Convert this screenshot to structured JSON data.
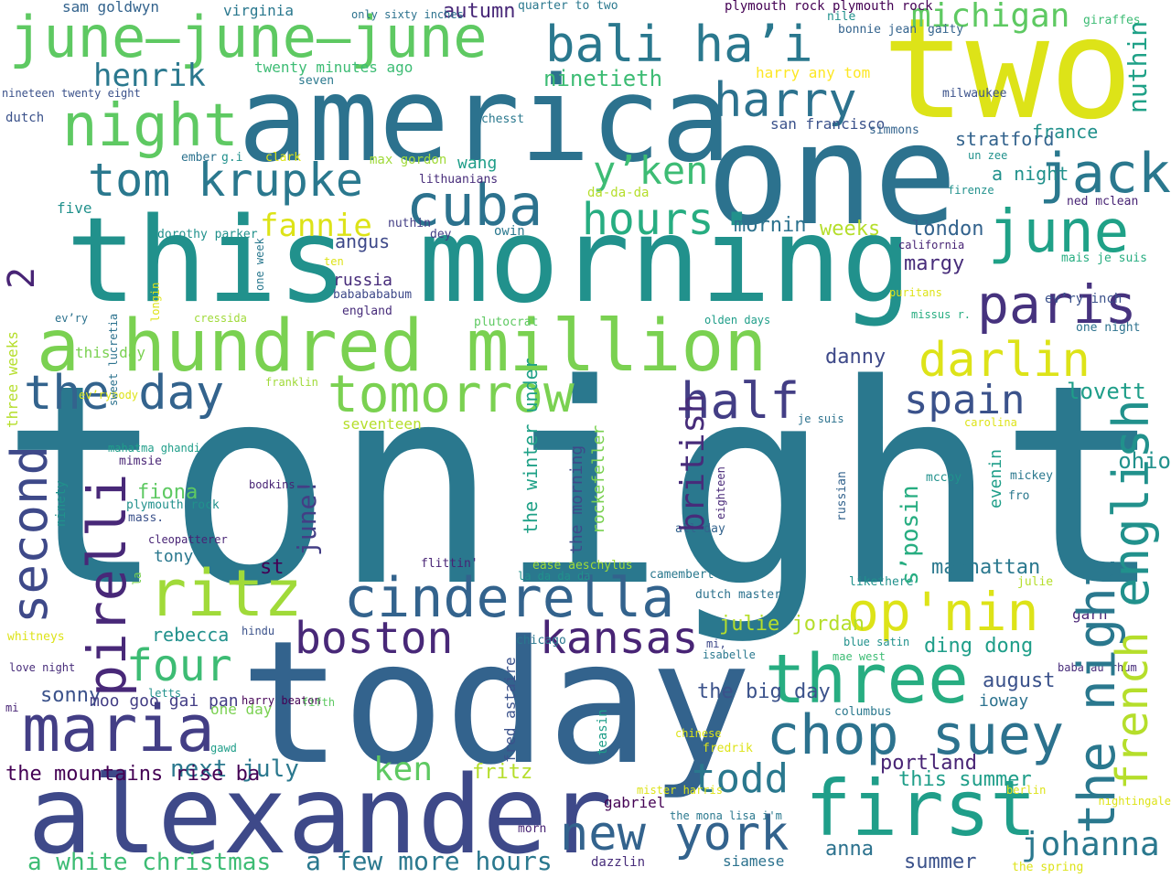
{
  "words": [
    {
      "text": "tonight",
      "color": "#2a788e"
    },
    {
      "text": "today",
      "color": "#33638d"
    },
    {
      "text": "one",
      "color": "#2c728e"
    },
    {
      "text": "this morning",
      "color": "#21918c"
    },
    {
      "text": "america",
      "color": "#2c728e"
    },
    {
      "text": "two",
      "color": "#dde318"
    },
    {
      "text": "alexander",
      "color": "#3e4989"
    },
    {
      "text": "a hundred million",
      "color": "#7ad151"
    },
    {
      "text": "june—june—june",
      "color": "#5ec962"
    },
    {
      "text": "bali ha’i",
      "color": "#2a788e"
    },
    {
      "text": "maria",
      "color": "#433e85"
    },
    {
      "text": "first",
      "color": "#1f9e89"
    },
    {
      "text": "three",
      "color": "#27ad81"
    },
    {
      "text": "chop suey",
      "color": "#2c728e"
    },
    {
      "text": "new york",
      "color": "#33638d"
    },
    {
      "text": "cinderella",
      "color": "#33638d"
    },
    {
      "text": "tomorrow",
      "color": "#7ad151"
    },
    {
      "text": "ritz",
      "color": "#a0da39"
    },
    {
      "text": "boston",
      "color": "#482878"
    },
    {
      "text": "kansas",
      "color": "#482475"
    },
    {
      "text": "paris",
      "color": "#46327e"
    },
    {
      "text": "june",
      "color": "#1fa187"
    },
    {
      "text": "jack",
      "color": "#2a788e"
    },
    {
      "text": "cuba",
      "color": "#2c728e"
    },
    {
      "text": "night",
      "color": "#5ec962"
    },
    {
      "text": "tom krupke",
      "color": "#2a788e"
    },
    {
      "text": "the day",
      "color": "#33638d"
    },
    {
      "text": "harry",
      "color": "#2c728e"
    },
    {
      "text": "op'nin",
      "color": "#dde318"
    },
    {
      "text": "darlin",
      "color": "#dde318"
    },
    {
      "text": "half",
      "color": "#433e85"
    },
    {
      "text": "spain",
      "color": "#3b528b"
    },
    {
      "text": "todd",
      "color": "#2a788e"
    },
    {
      "text": "y’ken",
      "color": "#3dbc74"
    },
    {
      "text": "hours",
      "color": "#27ad81"
    },
    {
      "text": "four",
      "color": "#3dbc74"
    },
    {
      "text": "michigan",
      "color": "#5ec962"
    },
    {
      "text": "johanna",
      "color": "#2a788e"
    },
    {
      "text": "ken",
      "color": "#5ec962"
    },
    {
      "text": "henrik",
      "color": "#2a788e"
    },
    {
      "text": "fannie",
      "color": "#dde318"
    },
    {
      "text": "a white christmas",
      "color": "#3dbc74"
    },
    {
      "text": "a few more hours",
      "color": "#2a788e"
    },
    {
      "text": "next july",
      "color": "#2a788e"
    },
    {
      "text": "ninetieth",
      "color": "#3dbc74"
    },
    {
      "text": "autumn",
      "color": "#482878"
    },
    {
      "text": "london",
      "color": "#33638d"
    },
    {
      "text": "mornin",
      "color": "#2c728e"
    },
    {
      "text": "weeks",
      "color": "#b5de2b"
    },
    {
      "text": "margy",
      "color": "#472c7a"
    },
    {
      "text": "angus",
      "color": "#3e4989"
    },
    {
      "text": "russia",
      "color": "#472c7a"
    },
    {
      "text": "danny",
      "color": "#3e4989"
    },
    {
      "text": "lovett",
      "color": "#1f9e89"
    },
    {
      "text": "st",
      "color": "#440154"
    },
    {
      "text": "manhattan",
      "color": "#2a788e"
    },
    {
      "text": "julie jordan",
      "color": "#b5de2b"
    },
    {
      "text": "ding dong",
      "color": "#1f9e89"
    },
    {
      "text": "the big day",
      "color": "#3b528b"
    },
    {
      "text": "august",
      "color": "#3b528b"
    },
    {
      "text": "ioway",
      "color": "#2c728e"
    },
    {
      "text": "portland",
      "color": "#482475"
    },
    {
      "text": "this summer",
      "color": "#1f9e89"
    },
    {
      "text": "anna",
      "color": "#2c728e"
    },
    {
      "text": "summer",
      "color": "#3b528b"
    },
    {
      "text": "fritz",
      "color": "#b5de2b"
    },
    {
      "text": "seventeen",
      "color": "#b5de2b"
    },
    {
      "text": "the mountains rise ba",
      "color": "#440154"
    },
    {
      "text": "fiona",
      "color": "#5ec962"
    },
    {
      "text": "tony",
      "color": "#2a788e"
    },
    {
      "text": "rebecca",
      "color": "#21918c"
    },
    {
      "text": "one day",
      "color": "#7ad151"
    },
    {
      "text": "sonny",
      "color": "#3b528b"
    },
    {
      "text": "this day",
      "color": "#7ad151"
    },
    {
      "text": "wang",
      "color": "#1f9e89"
    },
    {
      "text": "stratford",
      "color": "#33638d"
    },
    {
      "text": "france",
      "color": "#21918c"
    },
    {
      "text": "a night",
      "color": "#21918c"
    },
    {
      "text": "five",
      "color": "#21918c"
    },
    {
      "text": "twenty minutes ago",
      "color": "#3dbc74"
    },
    {
      "text": "virginia",
      "color": "#2a788e"
    },
    {
      "text": "sam goldwyn",
      "color": "#33638d"
    },
    {
      "text": "quarter to two",
      "color": "#2a788e"
    },
    {
      "text": "plymouth rock plymouth rock",
      "color": "#440154"
    },
    {
      "text": "only sixty inches",
      "color": "#2c728e"
    },
    {
      "text": "nile",
      "color": "#21918c"
    },
    {
      "text": "giraffes",
      "color": "#3dbc74"
    },
    {
      "text": "gaity",
      "color": "#33638d"
    },
    {
      "text": "bonnie jean",
      "color": "#33638d"
    },
    {
      "text": "dutch",
      "color": "#3b528b"
    },
    {
      "text": "seven",
      "color": "#2a788e"
    },
    {
      "text": "nineteen twenty eight",
      "color": "#3b528b"
    },
    {
      "text": "harry any tom",
      "color": "#fde725"
    },
    {
      "text": "san francisco",
      "color": "#3b528b"
    },
    {
      "text": "simmons",
      "color": "#33638d"
    },
    {
      "text": "milwaukee",
      "color": "#3b528b"
    },
    {
      "text": "chesst",
      "color": "#2a788e"
    },
    {
      "text": "ember",
      "color": "#2c728e"
    },
    {
      "text": "g.i",
      "color": "#21918c"
    },
    {
      "text": "clark",
      "color": "#dde318"
    },
    {
      "text": "max gordon",
      "color": "#a0da39"
    },
    {
      "text": "lithuanians",
      "color": "#472c7a"
    },
    {
      "text": "da-da-da",
      "color": "#b5de2b"
    },
    {
      "text": "un zee",
      "color": "#21918c"
    },
    {
      "text": "firenze",
      "color": "#21918c"
    },
    {
      "text": "ned mclean",
      "color": "#482475"
    },
    {
      "text": "dorothy parker",
      "color": "#21918c"
    },
    {
      "text": "nuthin",
      "color": "#433e85"
    },
    {
      "text": "dey",
      "color": "#433e85"
    },
    {
      "text": "owin",
      "color": "#2a788e"
    },
    {
      "text": "ten",
      "color": "#dde318"
    },
    {
      "text": "bababababum",
      "color": "#3e4989"
    },
    {
      "text": "england",
      "color": "#472c7a"
    },
    {
      "text": "plutocrat",
      "color": "#5ec962"
    },
    {
      "text": "california",
      "color": "#482475"
    },
    {
      "text": "mais je suis",
      "color": "#27ad81"
    },
    {
      "text": "ev’ry inch",
      "color": "#3b528b"
    },
    {
      "text": "puritans",
      "color": "#dde318"
    },
    {
      "text": "missus r.",
      "color": "#27ad81"
    },
    {
      "text": "one night",
      "color": "#2c728e"
    },
    {
      "text": "ev’ry",
      "color": "#2c728e"
    },
    {
      "text": "cressida",
      "color": "#a0da39"
    },
    {
      "text": "olden days",
      "color": "#1f9e89"
    },
    {
      "text": "franklin",
      "color": "#a0da39"
    },
    {
      "text": "je suis",
      "color": "#2c728e"
    },
    {
      "text": "carolina",
      "color": "#dde318"
    },
    {
      "text": "ev’rybody",
      "color": "#dde318"
    },
    {
      "text": "mahatma ghandi",
      "color": "#1f9e89"
    },
    {
      "text": "mimsie",
      "color": "#482475"
    },
    {
      "text": "plymouth rock",
      "color": "#21918c"
    },
    {
      "text": "mass.",
      "color": "#3b528b"
    },
    {
      "text": "cleopatterer",
      "color": "#482475"
    },
    {
      "text": "bodkins",
      "color": "#482475"
    },
    {
      "text": "mccoy",
      "color": "#21918c"
    },
    {
      "text": "mickey",
      "color": "#2a788e"
    },
    {
      "text": "fro",
      "color": "#2a788e"
    },
    {
      "text": "ohio",
      "color": "#21918c"
    },
    {
      "text": "1",
      "color": "#2a788e"
    },
    {
      "text": "all day",
      "color": "#33638d"
    },
    {
      "text": "flittin'",
      "color": "#482475"
    },
    {
      "text": "ease aeschylus",
      "color": "#a0da39"
    },
    {
      "text": "la da da da",
      "color": "#21918c"
    },
    {
      "text": "camembert",
      "color": "#2a788e"
    },
    {
      "text": "likethere",
      "color": "#21918c"
    },
    {
      "text": "julie",
      "color": "#b5de2b"
    },
    {
      "text": "dutch master",
      "color": "#2c728e"
    },
    {
      "text": "hindu",
      "color": "#3b528b"
    },
    {
      "text": "chicago",
      "color": "#2a788e"
    },
    {
      "text": "mi,",
      "color": "#3e4989"
    },
    {
      "text": "isabelle",
      "color": "#2a788e"
    },
    {
      "text": "blue satin",
      "color": "#21918c"
    },
    {
      "text": "garn",
      "color": "#482475"
    },
    {
      "text": "whitneys",
      "color": "#dde318"
    },
    {
      "text": "love night",
      "color": "#472c7a"
    },
    {
      "text": "mae west",
      "color": "#3dbc74"
    },
    {
      "text": "baba au rhum",
      "color": "#472c7a"
    },
    {
      "text": "letts",
      "color": "#21918c"
    },
    {
      "text": "harry beaton",
      "color": "#440154"
    },
    {
      "text": "mi",
      "color": "#482475"
    },
    {
      "text": "fifth",
      "color": "#5ec962"
    },
    {
      "text": "gawd",
      "color": "#1f9e89"
    },
    {
      "text": "columbus",
      "color": "#2a788e"
    },
    {
      "text": "chinese",
      "color": "#dde318"
    },
    {
      "text": "fredrik",
      "color": "#dde318"
    },
    {
      "text": "gabriel",
      "color": "#440154"
    },
    {
      "text": "the mona lisa i'm",
      "color": "#2a788e"
    },
    {
      "text": "mister harris",
      "color": "#dde318"
    },
    {
      "text": "berlin",
      "color": "#dde318"
    },
    {
      "text": "nightingale",
      "color": "#dde318"
    },
    {
      "text": "morn",
      "color": "#482475"
    },
    {
      "text": "dazzlin",
      "color": "#472c7a"
    },
    {
      "text": "siamese",
      "color": "#2c728e"
    },
    {
      "text": "the spring",
      "color": "#dde318"
    },
    {
      "text": "moo goo gai pan",
      "color": "#433e85"
    },
    {
      "text": "2",
      "color": "#482475"
    },
    {
      "text": "second",
      "color": "#3e4989"
    },
    {
      "text": "pirelli",
      "color": "#482878"
    },
    {
      "text": "english",
      "color": "#21918c"
    },
    {
      "text": "the night",
      "color": "#2a788e"
    },
    {
      "text": "french",
      "color": "#b5de2b"
    },
    {
      "text": "nuthin",
      "color": "#1fa187"
    },
    {
      "text": "british",
      "color": "#472c7a"
    },
    {
      "text": "june!",
      "color": "#433e85"
    },
    {
      "text": "the morning",
      "color": "#3e4989"
    },
    {
      "text": "rockefeller",
      "color": "#7ad151"
    },
    {
      "text": "the winter under",
      "color": "#1fa187"
    },
    {
      "text": "s’posin",
      "color": "#27ad81"
    },
    {
      "text": "evenin",
      "color": "#1f9e89"
    },
    {
      "text": "russian",
      "color": "#33638d"
    },
    {
      "text": "eighteen",
      "color": "#482878"
    },
    {
      "text": "fred astaire",
      "color": "#3b528b"
    },
    {
      "text": "teasin",
      "color": "#1f9e89"
    },
    {
      "text": "la",
      "color": "#7ad151"
    },
    {
      "text": "ninety",
      "color": "#21918c"
    },
    {
      "text": "three weeks",
      "color": "#b5de2b"
    },
    {
      "text": "sweet lucretia",
      "color": "#2c728e"
    },
    {
      "text": "longin",
      "color": "#dde318"
    },
    {
      "text": "one week",
      "color": "#2a788e"
    },
    {
      "text": "evening",
      "color": "#21918c"
    }
  ]
}
